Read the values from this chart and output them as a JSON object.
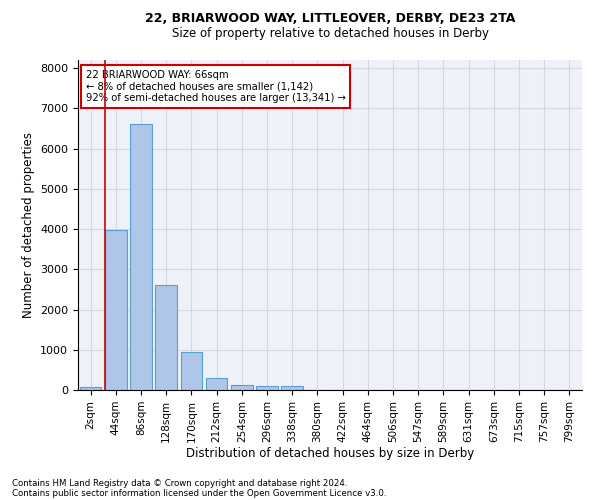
{
  "title_line1": "22, BRIARWOOD WAY, LITTLEOVER, DERBY, DE23 2TA",
  "title_line2": "Size of property relative to detached houses in Derby",
  "xlabel": "Distribution of detached houses by size in Derby",
  "ylabel": "Number of detached properties",
  "bar_values": [
    75,
    3980,
    6600,
    2620,
    950,
    310,
    130,
    90,
    90,
    0,
    0,
    0,
    0,
    0,
    0,
    0,
    0,
    0,
    0,
    0
  ],
  "bar_labels": [
    "2sqm",
    "44sqm",
    "86sqm",
    "128sqm",
    "170sqm",
    "212sqm",
    "254sqm",
    "296sqm",
    "338sqm",
    "380sqm",
    "422sqm",
    "464sqm",
    "506sqm",
    "547sqm",
    "589sqm",
    "631sqm",
    "673sqm",
    "715sqm",
    "757sqm",
    "799sqm"
  ],
  "bar_color": "#aec6e8",
  "bar_edge_color": "#5a9fd4",
  "grid_color": "#d0d8e8",
  "background_color": "#eef2f8",
  "vline_color": "#cc0000",
  "vline_x": 1.0,
  "annotation_text": "22 BRIARWOOD WAY: 66sqm\n← 8% of detached houses are smaller (1,142)\n92% of semi-detached houses are larger (13,341) →",
  "annotation_box_color": "#ffffff",
  "annotation_box_edge": "#cc0000",
  "ylim": [
    0,
    8200
  ],
  "yticks": [
    0,
    1000,
    2000,
    3000,
    4000,
    5000,
    6000,
    7000,
    8000
  ],
  "footer_line1": "Contains HM Land Registry data © Crown copyright and database right 2024.",
  "footer_line2": "Contains public sector information licensed under the Open Government Licence v3.0."
}
